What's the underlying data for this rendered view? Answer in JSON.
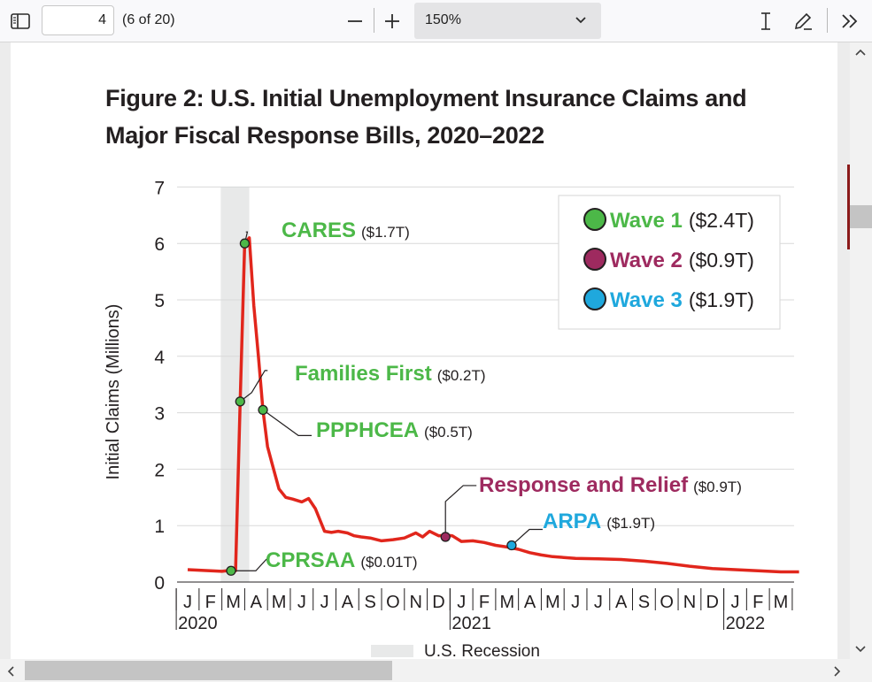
{
  "toolbar": {
    "page_number": "4",
    "page_count": "(6 of 20)",
    "zoom_value": "150%",
    "icons": [
      "sidebar-toggle-icon",
      "zoom-out-icon",
      "zoom-in-icon",
      "chevron-down-icon",
      "text-cursor-icon",
      "pen-icon",
      "double-chevron-right-icon"
    ]
  },
  "figure": {
    "title_line1": "Figure 2: U.S. Initial Unemployment Insurance Claims and",
    "title_line2": "Major Fiscal Response Bills, 2020–2022"
  },
  "chart_data": {
    "type": "line",
    "ylabel": "Initial Claims (Millions)",
    "ylim": [
      0,
      7
    ],
    "yticks": [
      "0",
      "1",
      "2",
      "3",
      "4",
      "5",
      "6",
      "7"
    ],
    "xticks": [
      "J",
      "F",
      "M",
      "A",
      "M",
      "J",
      "J",
      "A",
      "S",
      "O",
      "N",
      "D",
      "J",
      "F",
      "M",
      "A",
      "M",
      "J",
      "J",
      "A",
      "S",
      "O",
      "N",
      "D",
      "J",
      "F",
      "M"
    ],
    "year_labels": [
      "2020",
      "2021",
      "2022"
    ],
    "recession_label": "U.S. Recession",
    "recession_period": [
      "2020-02",
      "2020-04"
    ],
    "x": [
      0,
      0.5,
      1,
      1.5,
      1.9,
      2.1,
      2.3,
      2.5,
      2.7,
      2.9,
      3.1,
      3.3,
      3.5,
      3.7,
      4,
      4.3,
      4.6,
      5,
      5.3,
      5.6,
      6,
      6.3,
      6.6,
      7,
      7.3,
      7.6,
      8,
      8.5,
      9,
      9.5,
      10,
      10.3,
      10.6,
      11,
      11.3,
      11.6,
      12,
      12.5,
      13,
      13.5,
      14,
      14.5,
      15,
      15.5,
      16,
      17,
      18,
      19,
      20,
      21,
      22,
      23,
      24,
      25,
      26,
      26.8
    ],
    "values": [
      0.22,
      0.21,
      0.2,
      0.19,
      0.21,
      0.2,
      3.2,
      6.0,
      6.1,
      4.9,
      4.0,
      3.05,
      2.4,
      2.1,
      1.65,
      1.5,
      1.47,
      1.42,
      1.48,
      1.3,
      0.9,
      0.88,
      0.9,
      0.87,
      0.82,
      0.8,
      0.78,
      0.73,
      0.75,
      0.78,
      0.87,
      0.8,
      0.9,
      0.82,
      0.83,
      0.82,
      0.72,
      0.73,
      0.7,
      0.65,
      0.62,
      0.58,
      0.52,
      0.48,
      0.45,
      0.42,
      0.41,
      0.4,
      0.37,
      0.33,
      0.28,
      0.24,
      0.22,
      0.2,
      0.18,
      0.18
    ],
    "line_color": "#e1261c",
    "annotations": [
      {
        "name": "CARES",
        "amount": "($1.7T)",
        "wave": 1,
        "x": 2.5,
        "y": 6.0
      },
      {
        "name": "Families First",
        "amount": "($0.2T)",
        "wave": 1,
        "x": 2.3,
        "y": 3.2
      },
      {
        "name": "PPPHCEA",
        "amount": "($0.5T)",
        "wave": 1,
        "x": 3.3,
        "y": 3.05
      },
      {
        "name": "CPRSAA",
        "amount": "($0.01T)",
        "wave": 1,
        "x": 1.9,
        "y": 0.2
      },
      {
        "name": "Response and Relief",
        "amount": "($0.9T)",
        "wave": 2,
        "x": 11.3,
        "y": 0.8
      },
      {
        "name": "ARPA",
        "amount": "($1.9T)",
        "wave": 3,
        "x": 14.2,
        "y": 0.65
      }
    ],
    "legend": [
      {
        "label": "Wave 1",
        "amount": "($2.4T)",
        "color": "#4cb848"
      },
      {
        "label": "Wave 2",
        "amount": "($0.9T)",
        "color": "#9e2a5f"
      },
      {
        "label": "Wave 3",
        "amount": "($1.9T)",
        "color": "#1fa8dd"
      }
    ],
    "legend_position": "top-right",
    "grid": true
  },
  "colors": {
    "wave1": "#4cb848",
    "wave2": "#9e2a5f",
    "wave3": "#1fa8dd",
    "recession": "#e8e9e9"
  }
}
